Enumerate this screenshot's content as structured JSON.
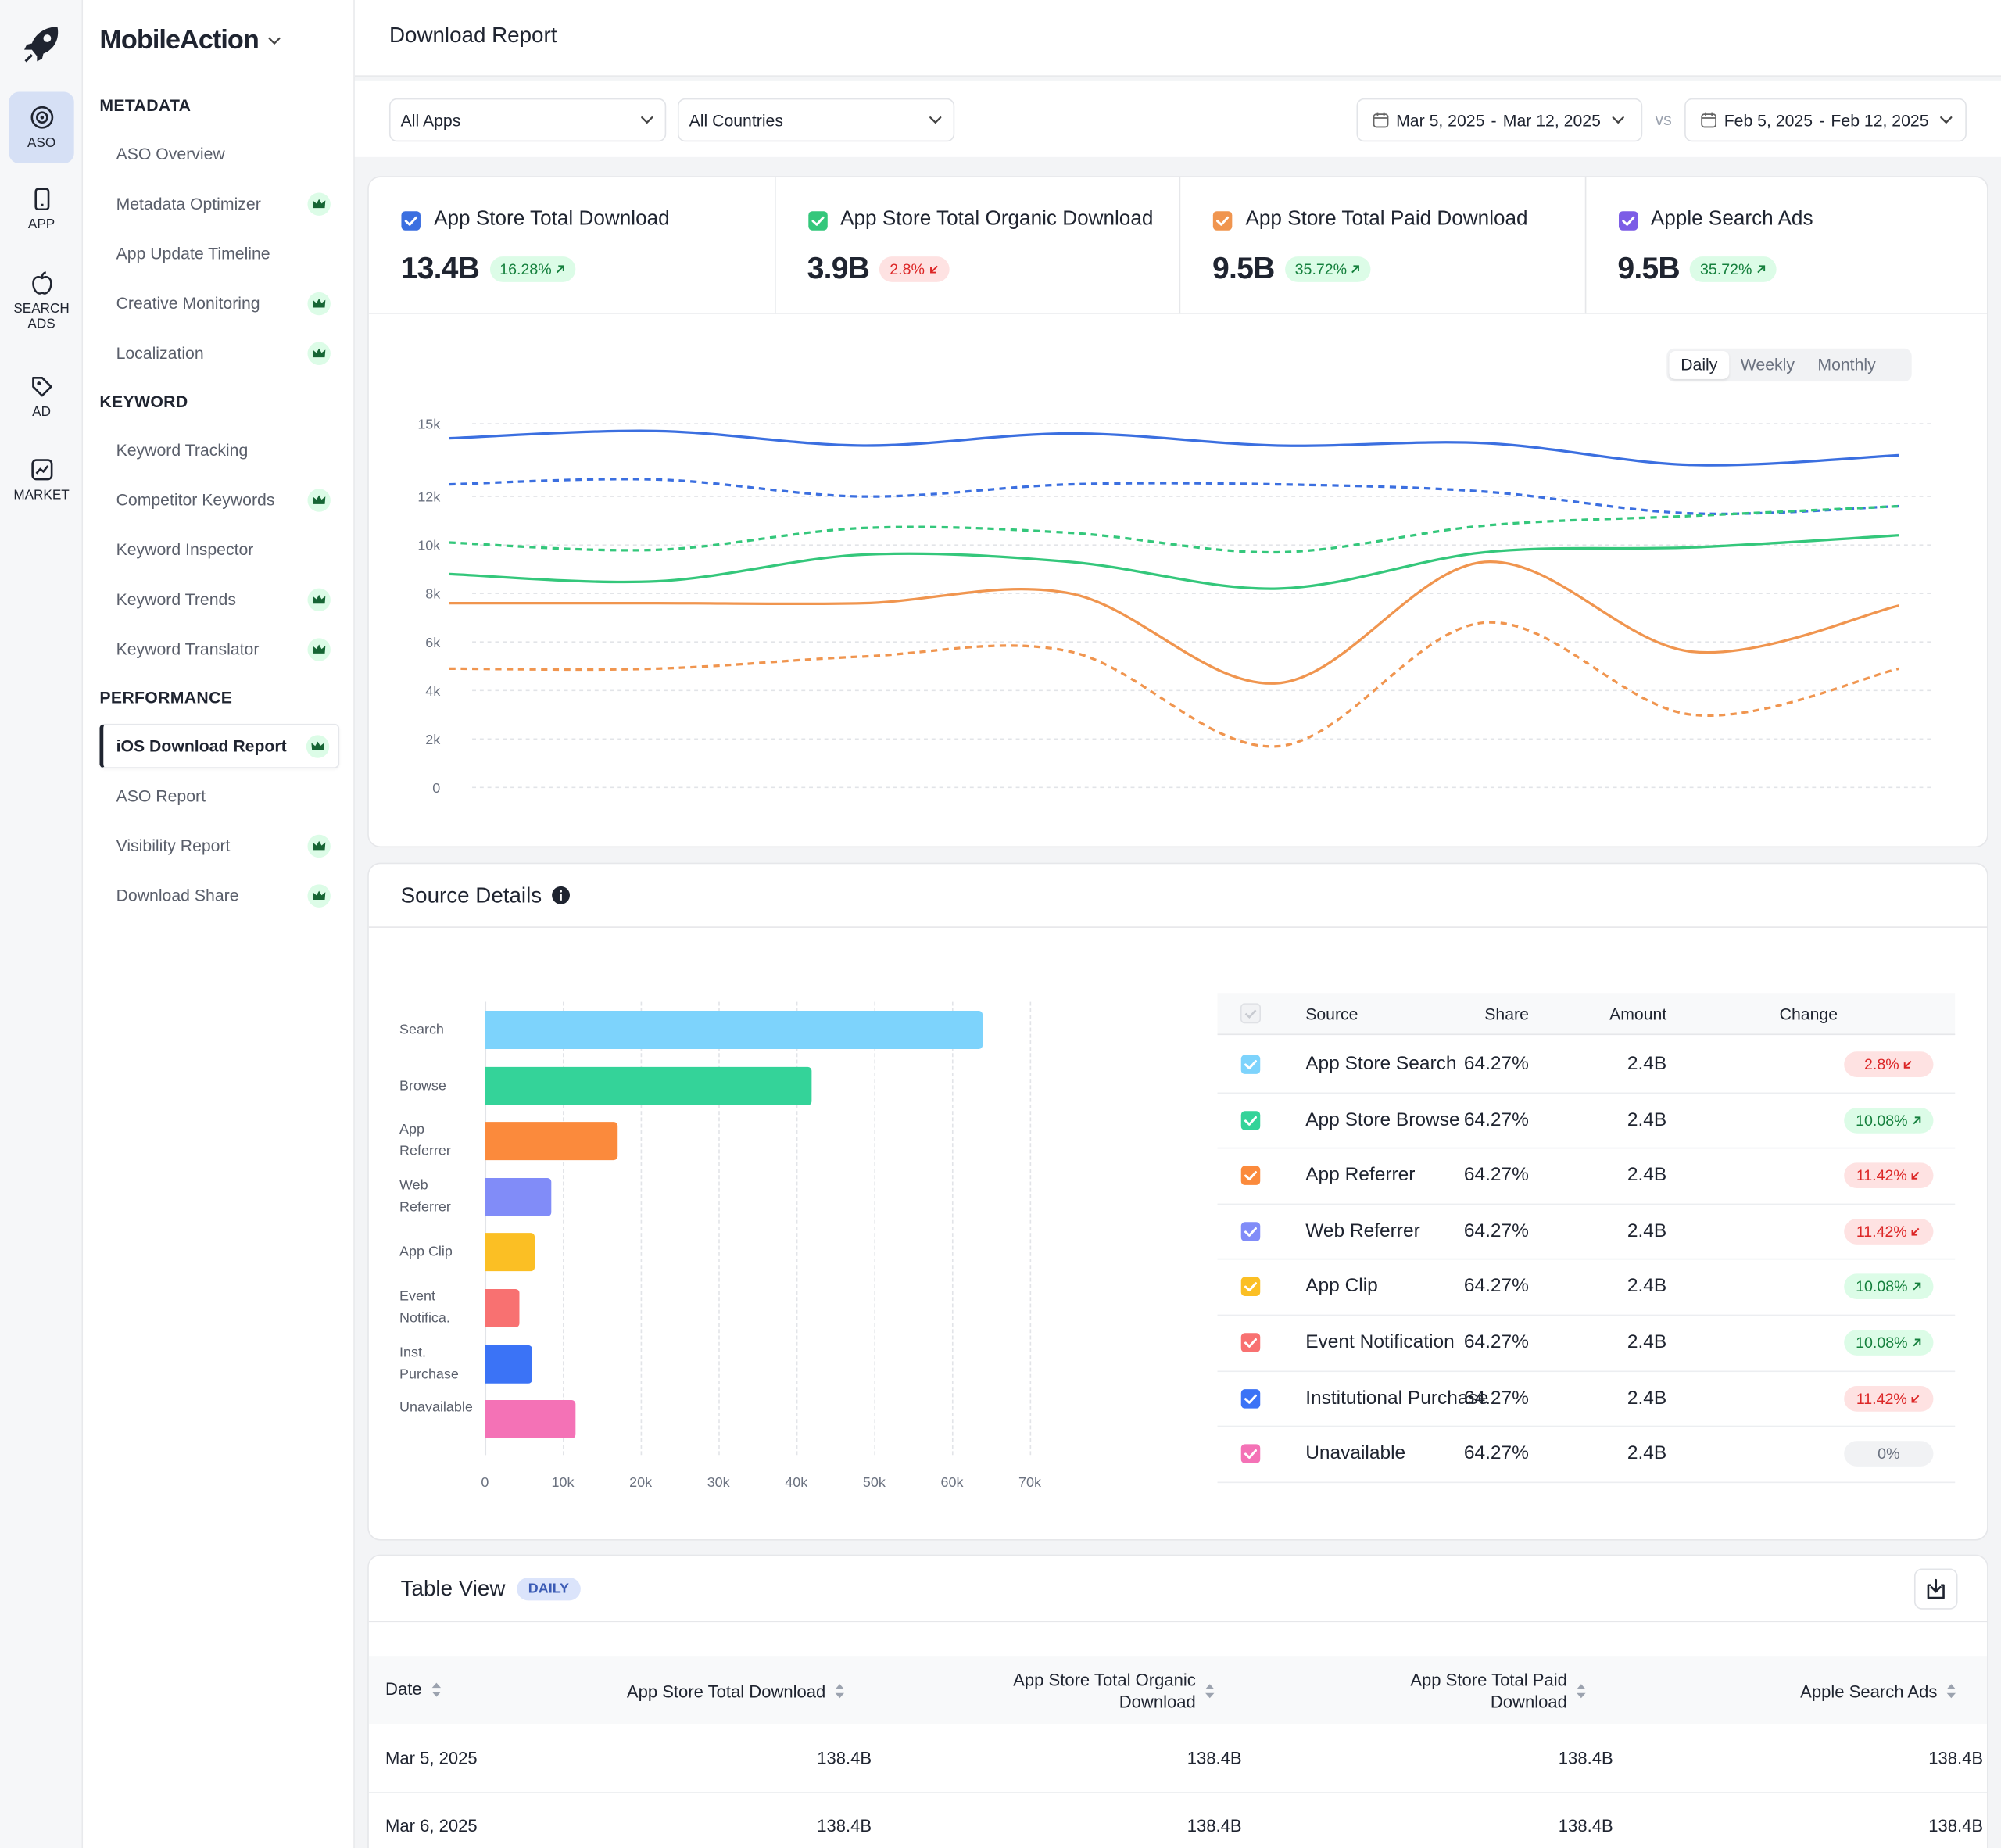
{
  "rail": [
    {
      "label": "ASO",
      "active": true
    },
    {
      "label": "APP",
      "active": false
    },
    {
      "label": "SEARCH ADS",
      "active": false
    },
    {
      "label": "AD",
      "active": false
    },
    {
      "label": "MARKET",
      "active": false
    }
  ],
  "brand": "MobileAction",
  "nav": [
    {
      "section": "METADATA",
      "items": [
        {
          "label": "ASO Overview",
          "premium": false,
          "active": false
        },
        {
          "label": "Metadata Optimizer",
          "premium": true,
          "active": false
        },
        {
          "label": "App Update Timeline",
          "premium": false,
          "active": false
        },
        {
          "label": "Creative Monitoring",
          "premium": true,
          "active": false
        },
        {
          "label": "Localization",
          "premium": true,
          "active": false
        }
      ]
    },
    {
      "section": "KEYWORD",
      "items": [
        {
          "label": "Keyword Tracking",
          "premium": false,
          "active": false
        },
        {
          "label": "Competitor Keywords",
          "premium": true,
          "active": false
        },
        {
          "label": "Keyword Inspector",
          "premium": false,
          "active": false
        },
        {
          "label": "Keyword Trends",
          "premium": true,
          "active": false
        },
        {
          "label": "Keyword Translator",
          "premium": true,
          "active": false
        }
      ]
    },
    {
      "section": "PERFORMANCE",
      "items": [
        {
          "label": "iOS Download Report",
          "premium": true,
          "active": true
        },
        {
          "label": "ASO Report",
          "premium": false,
          "active": false
        },
        {
          "label": "Visibility Report",
          "premium": true,
          "active": false
        },
        {
          "label": "Download Share",
          "premium": true,
          "active": false
        }
      ]
    }
  ],
  "page_title": "Download Report",
  "filters": {
    "app": "All Apps",
    "country": "All Countries",
    "range_start": "Mar 5, 2025",
    "range_sep": "-",
    "range_end": "Mar 12, 2025",
    "vs": "vs",
    "compare_start": "Feb 5, 2025",
    "compare_sep": "-",
    "compare_end": "Feb 12, 2025"
  },
  "kpis": [
    {
      "label": "App Store Total Download",
      "value": "13.4B",
      "change": "16.28%",
      "trend": "up",
      "color": "#3b6fe0"
    },
    {
      "label": "App Store Total Organic Download",
      "value": "3.9B",
      "change": "2.8%",
      "trend": "down",
      "color": "#34c77b"
    },
    {
      "label": "App Store Total Paid Download",
      "value": "9.5B",
      "change": "35.72%",
      "trend": "up",
      "color": "#f0954f"
    },
    {
      "label": "Apple Search Ads",
      "value": "9.5B",
      "change": "35.72%",
      "trend": "up",
      "color": "#7c5ce6"
    }
  ],
  "line_chart": {
    "type": "line",
    "periods": [
      "Daily",
      "Weekly",
      "Monthly"
    ],
    "active_period": 0,
    "categories": [
      null,
      null,
      null,
      null,
      null,
      null,
      null,
      null
    ],
    "ylim": [
      0,
      15000
    ],
    "yticks": [
      {
        "value": 15000,
        "label": "15k"
      },
      {
        "value": 12000,
        "label": "12k"
      },
      {
        "value": 10000,
        "label": "10k"
      },
      {
        "value": 8000,
        "label": "8k"
      },
      {
        "value": 6000,
        "label": "6k"
      },
      {
        "value": 4000,
        "label": "4k"
      },
      {
        "value": 2000,
        "label": "2k"
      },
      0
    ],
    "grid": true,
    "series": [
      {
        "color": "#3b6fe0",
        "dashed": false,
        "values": [
          14400,
          14700,
          14100,
          14600,
          14100,
          14200,
          13300,
          13700
        ]
      },
      {
        "color": "#3b6fe0",
        "dashed": true,
        "values": [
          12500,
          12700,
          12000,
          12500,
          12500,
          12200,
          11300,
          11600
        ]
      },
      {
        "color": "#34c77b",
        "dashed": true,
        "values": [
          10100,
          9800,
          10700,
          10500,
          9700,
          10800,
          11200,
          11600
        ]
      },
      {
        "color": "#34c77b",
        "dashed": false,
        "values": [
          8800,
          8500,
          9600,
          9300,
          8200,
          9700,
          9900,
          10400
        ]
      },
      {
        "color": "#f0954f",
        "dashed": false,
        "values": [
          7600,
          7600,
          7600,
          8000,
          4300,
          9300,
          5600,
          7500
        ]
      },
      {
        "color": "#f0954f",
        "dashed": true,
        "values": [
          4900,
          4900,
          5400,
          5600,
          1700,
          6800,
          3000,
          4900
        ]
      }
    ]
  },
  "source_details": {
    "title": "Source Details",
    "chart": {
      "type": "bar",
      "orientation": "horizontal",
      "categories": [
        "Search",
        "Browse",
        "App Referrer",
        "Web Referrer",
        "App Clip",
        "Event Notifica.",
        "Inst. Purchase",
        "Unavailable"
      ],
      "values": [
        64000,
        42000,
        17000,
        8500,
        6400,
        4400,
        6100,
        11600
      ],
      "colors": [
        "#7dd3fc",
        "#34d399",
        "#fb8a3c",
        "#818cf8",
        "#fbbf24",
        "#f87171",
        "#3b73f6",
        "#f472b6"
      ],
      "xlim": [
        0,
        70000
      ],
      "xticks": [
        0,
        {
          "value": 10000,
          "label": "10k"
        },
        {
          "value": 20000,
          "label": "20k"
        },
        {
          "value": 30000,
          "label": "30k"
        },
        {
          "value": 40000,
          "label": "40k"
        },
        {
          "value": 50000,
          "label": "50k"
        },
        {
          "value": 60000,
          "label": "60k"
        },
        {
          "value": 70000,
          "label": "70k"
        }
      ],
      "grid": true
    },
    "table": {
      "columns": [
        "Source",
        "Share",
        "Amount",
        "Change"
      ],
      "rows": [
        {
          "source": "App Store Search",
          "share": "64.27%",
          "amount": "2.4B",
          "change": "2.8%",
          "trend": "down"
        },
        {
          "source": "App Store Browse",
          "share": "64.27%",
          "amount": "2.4B",
          "change": "10.08%",
          "trend": "up"
        },
        {
          "source": "App Referrer",
          "share": "64.27%",
          "amount": "2.4B",
          "change": "11.42%",
          "trend": "down"
        },
        {
          "source": "Web Referrer",
          "share": "64.27%",
          "amount": "2.4B",
          "change": "11.42%",
          "trend": "down"
        },
        {
          "source": "App Clip",
          "share": "64.27%",
          "amount": "2.4B",
          "change": "10.08%",
          "trend": "up"
        },
        {
          "source": "Event Notification",
          "share": "64.27%",
          "amount": "2.4B",
          "change": "10.08%",
          "trend": "up"
        },
        {
          "source": "Institutional Purchase",
          "share": "64.27%",
          "amount": "2.4B",
          "change": "11.42%",
          "trend": "down"
        },
        {
          "source": "Unavailable",
          "share": "64.27%",
          "amount": "2.4B",
          "change": "0%",
          "trend": "flat"
        }
      ]
    }
  },
  "table_view": {
    "title": "Table View",
    "badge": "DAILY",
    "columns": [
      "Date",
      "App Store Total Download",
      "App Store Total Organic Download",
      "App Store Total Paid Download",
      "Apple Search Ads"
    ],
    "rows": [
      [
        "Mar 5, 2025",
        "138.4B",
        "138.4B",
        "138.4B",
        "138.4B"
      ],
      [
        "Mar 6, 2025",
        "138.4B",
        "138.4B",
        "138.4B",
        "138.4B"
      ]
    ]
  }
}
